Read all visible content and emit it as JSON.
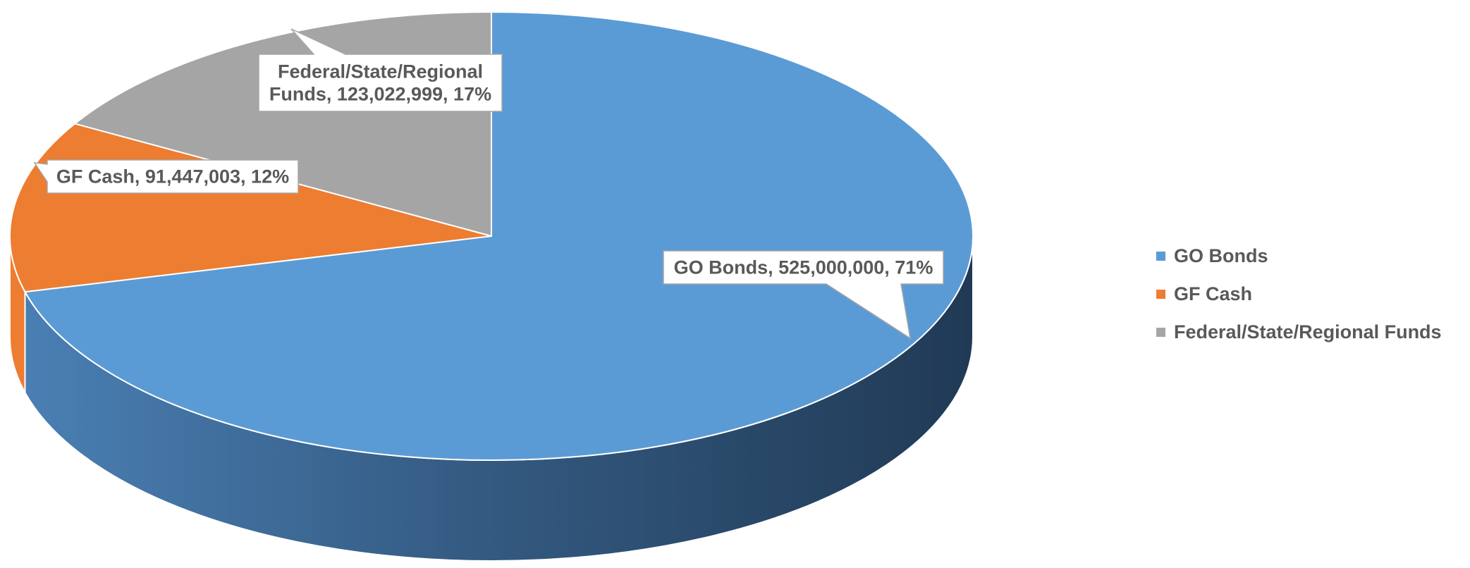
{
  "chart_data": {
    "type": "pie",
    "style": "3d",
    "title": "",
    "slices": [
      {
        "label": "GO Bonds",
        "value": 525000000,
        "percent": 71,
        "value_label": "525,000,000",
        "percent_label": "71%",
        "color": "#5B9BD5",
        "callout_lines": [
          "GO Bonds, 525,000,000, 71%"
        ]
      },
      {
        "label": "GF Cash",
        "value": 91447003,
        "percent": 12,
        "value_label": "91,447,003",
        "percent_label": "12%",
        "color": "#ED7D31",
        "callout_lines": [
          "GF Cash, 91,447,003, 12%"
        ]
      },
      {
        "label": "Federal/State/Regional Funds",
        "value": 123022999,
        "percent": 17,
        "value_label": "123,022,999",
        "percent_label": "17%",
        "color": "#A5A5A5",
        "callout_lines": [
          "Federal/State/Regional",
          "Funds, 123,022,999, 17%"
        ]
      }
    ],
    "legend": {
      "position": "right",
      "items": [
        "GO Bonds",
        "GF Cash",
        "Federal/State/Regional Funds"
      ]
    }
  }
}
